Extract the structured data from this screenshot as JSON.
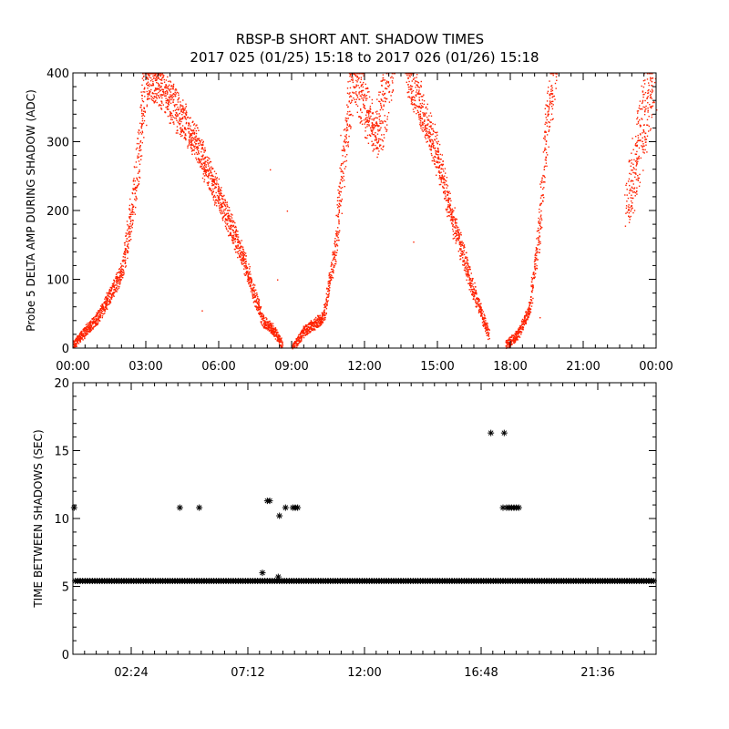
{
  "figure": {
    "title_line1": "RBSP-B SHORT ANT. SHADOW TIMES",
    "title_line2": "2017 025 (01/25) 15:18 to 2017 026 (01/26) 15:18",
    "colors": {
      "series_top": "#ff2200",
      "series_bottom": "#000000",
      "axes": "#000000"
    }
  },
  "chart_data": [
    {
      "type": "scatter",
      "title": "",
      "xlabel": "",
      "ylabel": "Probe 5 DELTA AMP DURING SHADOW (ADC)",
      "xlim": [
        0,
        24
      ],
      "ylim": [
        0,
        400
      ],
      "x_unit": "hours",
      "xticks": [
        0,
        3,
        6,
        9,
        12,
        15,
        18,
        21,
        24
      ],
      "xtick_labels": [
        "00:00",
        "03:00",
        "06:00",
        "09:00",
        "12:00",
        "15:00",
        "18:00",
        "21:00",
        "00:00"
      ],
      "yticks": [
        0,
        100,
        200,
        300,
        400
      ],
      "ytick_labels": [
        "0",
        "100",
        "200",
        "300",
        "400"
      ],
      "grid": false,
      "marker": "dot",
      "color": "#ff2200",
      "series": [
        {
          "values_description_bands": [
            {
              "x": [
                0.0,
                1.0,
                2.0,
                2.5,
                3.0,
                4.0,
                5.0,
                6.0,
                7.0,
                7.8,
                8.3,
                8.6
              ],
              "y": [
                5,
                45,
                110,
                220,
                400,
                360,
                300,
                220,
                130,
                40,
                25,
                5
              ],
              "spread": 0.12
            },
            {
              "x": [
                9.0,
                9.5,
                10.3,
                10.8,
                11.2,
                11.5
              ],
              "y": [
                0,
                25,
                45,
                150,
                300,
                400
              ],
              "spread": 0.1
            },
            {
              "x": [
                11.6,
                12.0,
                12.5,
                13.0
              ],
              "y": [
                400,
                350,
                300,
                400
              ],
              "spread": 0.2
            },
            {
              "x": [
                13.8,
                14.5,
                15.0,
                15.5,
                16.0,
                16.5,
                16.9,
                17.1
              ],
              "y": [
                400,
                330,
                280,
                200,
                140,
                80,
                40,
                20
              ],
              "spread": 0.12
            },
            {
              "x": [
                17.8,
                18.3,
                18.8,
                19.2,
                19.5,
                19.8
              ],
              "y": [
                5,
                20,
                60,
                180,
                330,
                400
              ],
              "spread": 0.1
            },
            {
              "x": [
                22.8,
                23.2,
                23.6,
                23.9
              ],
              "y": [
                190,
                280,
                350,
                400
              ],
              "spread": 0.25
            }
          ],
          "isolated_points": [
            [
              8.1,
              260
            ],
            [
              8.8,
              200
            ],
            [
              8.4,
              100
            ],
            [
              14.0,
              155
            ],
            [
              11.0,
              310
            ],
            [
              5.3,
              55
            ],
            [
              19.2,
              45
            ]
          ]
        }
      ]
    },
    {
      "type": "scatter",
      "title": "",
      "xlabel": "",
      "ylabel": "TIME BETWEEN SHADOWS (SEC)",
      "xlim": [
        0,
        24
      ],
      "ylim": [
        0,
        20
      ],
      "x_unit": "hours",
      "xticks": [
        2.4,
        7.2,
        12.0,
        16.8,
        21.6
      ],
      "xtick_labels": [
        "02:24",
        "07:12",
        "12:00",
        "16:48",
        "21:36"
      ],
      "xminor_step": 0.48,
      "yticks": [
        0,
        5,
        10,
        15,
        20
      ],
      "ytick_labels": [
        "0",
        "5",
        "10",
        "15",
        "20"
      ],
      "grid": false,
      "marker": "asterisk",
      "color": "#000000",
      "series": [
        {
          "baseline": {
            "y": 5.4,
            "x_start": 0.1,
            "x_end": 23.9,
            "step": 0.1
          },
          "points": [
            [
              0.05,
              10.8
            ],
            [
              4.4,
              10.8
            ],
            [
              5.2,
              10.8
            ],
            [
              7.8,
              6.0
            ],
            [
              8.0,
              11.3
            ],
            [
              8.1,
              11.3
            ],
            [
              8.45,
              5.7
            ],
            [
              8.5,
              10.2
            ],
            [
              8.75,
              10.8
            ],
            [
              9.05,
              10.8
            ],
            [
              9.15,
              10.8
            ],
            [
              9.25,
              10.8
            ],
            [
              17.2,
              16.3
            ],
            [
              17.75,
              16.3
            ],
            [
              17.7,
              10.8
            ],
            [
              17.85,
              10.8
            ],
            [
              17.95,
              10.8
            ],
            [
              18.05,
              10.8
            ],
            [
              18.15,
              10.8
            ],
            [
              18.25,
              10.8
            ],
            [
              18.35,
              10.8
            ]
          ]
        }
      ]
    }
  ]
}
